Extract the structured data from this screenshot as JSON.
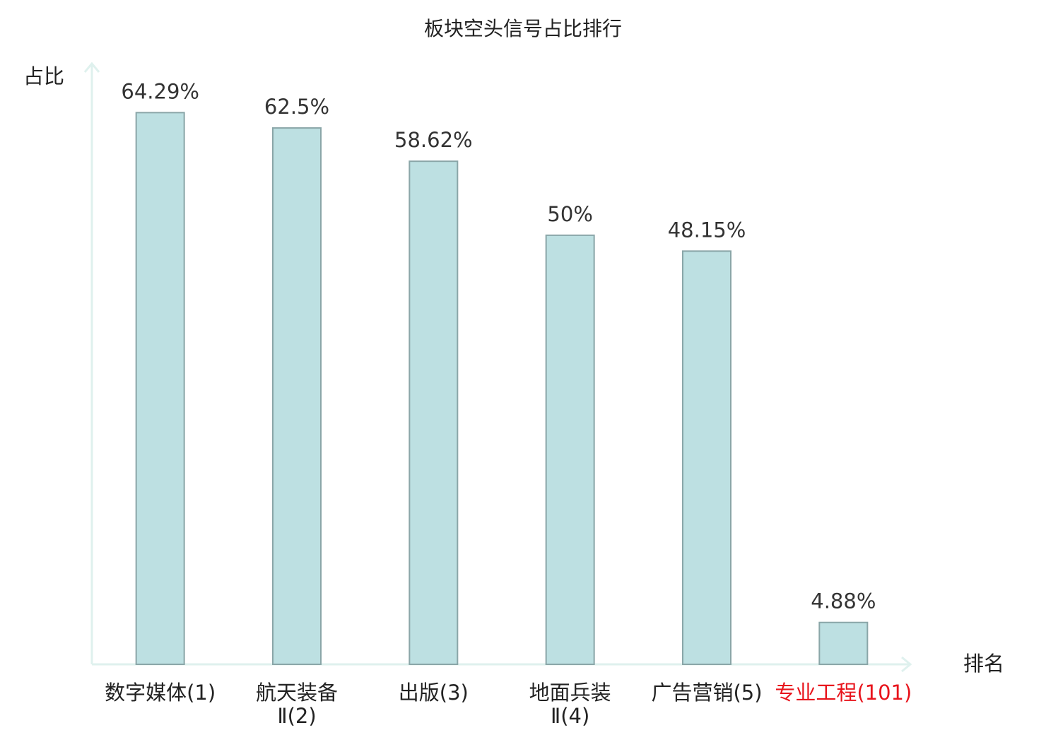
{
  "chart_data": {
    "type": "bar",
    "title": "板块空头信号占比排行",
    "y_label": "占比",
    "x_label": "排名",
    "categories": [
      "数字媒体(1)",
      "航天装备Ⅱ(2)",
      "出版(3)",
      "地面兵装Ⅱ(4)",
      "广告营销(5)",
      "专业工程(101)"
    ],
    "category_colors": [
      "#222222",
      "#222222",
      "#222222",
      "#222222",
      "#222222",
      "#e8141c"
    ],
    "values": [
      64.29,
      62.5,
      58.62,
      50,
      48.15,
      4.88
    ],
    "value_labels": [
      "64.29%",
      "62.5%",
      "58.62%",
      "50%",
      "48.15%",
      "4.88%"
    ],
    "color": "#bde0e2",
    "edge_color": "#8aa6a8",
    "ylim": [
      0,
      70
    ]
  }
}
